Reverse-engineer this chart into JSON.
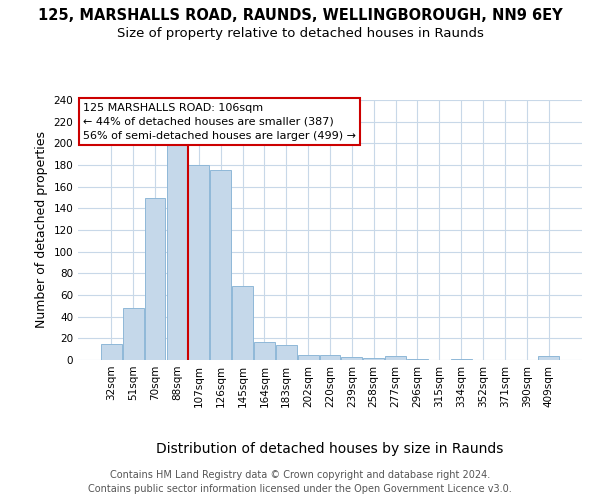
{
  "title_line1": "125, MARSHALLS ROAD, RAUNDS, WELLINGBOROUGH, NN9 6EY",
  "title_line2": "Size of property relative to detached houses in Raunds",
  "xlabel": "Distribution of detached houses by size in Raunds",
  "ylabel": "Number of detached properties",
  "bar_labels": [
    "32sqm",
    "51sqm",
    "70sqm",
    "88sqm",
    "107sqm",
    "126sqm",
    "145sqm",
    "164sqm",
    "183sqm",
    "202sqm",
    "220sqm",
    "239sqm",
    "258sqm",
    "277sqm",
    "296sqm",
    "315sqm",
    "334sqm",
    "352sqm",
    "371sqm",
    "390sqm",
    "409sqm"
  ],
  "bar_values": [
    15,
    48,
    150,
    200,
    180,
    175,
    68,
    17,
    14,
    5,
    5,
    3,
    2,
    4,
    1,
    0,
    1,
    0,
    0,
    0,
    4
  ],
  "bar_color": "#c5d8ea",
  "bar_edgecolor": "#8fb8d8",
  "vline_index": 3.5,
  "annotation_line1": "125 MARSHALLS ROAD: 106sqm",
  "annotation_line2": "← 44% of detached houses are smaller (387)",
  "annotation_line3": "56% of semi-detached houses are larger (499) →",
  "annotation_box_color": "#ffffff",
  "annotation_box_edgecolor": "#cc0000",
  "vline_color": "#cc0000",
  "ylim": [
    0,
    240
  ],
  "yticks": [
    0,
    20,
    40,
    60,
    80,
    100,
    120,
    140,
    160,
    180,
    200,
    220,
    240
  ],
  "footer_line1": "Contains HM Land Registry data © Crown copyright and database right 2024.",
  "footer_line2": "Contains public sector information licensed under the Open Government Licence v3.0.",
  "bg_color": "#ffffff",
  "grid_color": "#c8d8e8",
  "title_fontsize": 10.5,
  "subtitle_fontsize": 9.5,
  "ylabel_fontsize": 9,
  "xlabel_fontsize": 10,
  "tick_fontsize": 7.5,
  "annotation_fontsize": 8,
  "footer_fontsize": 7
}
